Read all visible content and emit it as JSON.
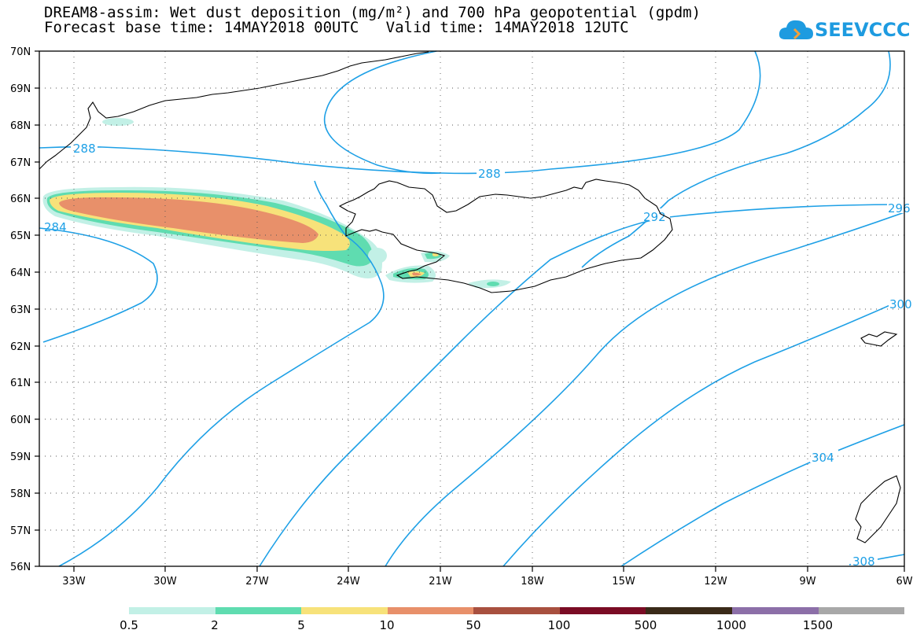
{
  "header": {
    "title_line1": "DREAM8-assim: Wet dust deposition (mg/m²) and 700 hPa geopotential (gpdm)",
    "title_line2": "Forecast base time: 14MAY2018 00UTC   Valid time: 14MAY2018 12UTC",
    "logo_text": "SEEVCCC"
  },
  "map": {
    "lat_labels": [
      "70N",
      "69N",
      "68N",
      "67N",
      "66N",
      "65N",
      "64N",
      "63N",
      "62N",
      "61N",
      "60N",
      "59N",
      "58N",
      "57N",
      "56N"
    ],
    "lon_labels": [
      "33W",
      "30W",
      "27W",
      "24W",
      "21W",
      "18W",
      "15W",
      "12W",
      "9W",
      "6W"
    ],
    "contour_labels": [
      "288",
      "288",
      "292",
      "296",
      "300",
      "304",
      "308",
      "284"
    ],
    "colors": {
      "contour": "#1ea0e6",
      "grid": "#555555",
      "coast": "#000000"
    }
  },
  "legend": {
    "labels": [
      "0.5",
      "2",
      "5",
      "10",
      "50",
      "100",
      "500",
      "1000",
      "1500"
    ],
    "colors": [
      "#c2f0e6",
      "#5fdcb0",
      "#f7e27a",
      "#e8906a",
      "#a8503f",
      "#7a0c24",
      "#3a2a18",
      "#8c6fa8",
      "#a8a8a8"
    ]
  }
}
